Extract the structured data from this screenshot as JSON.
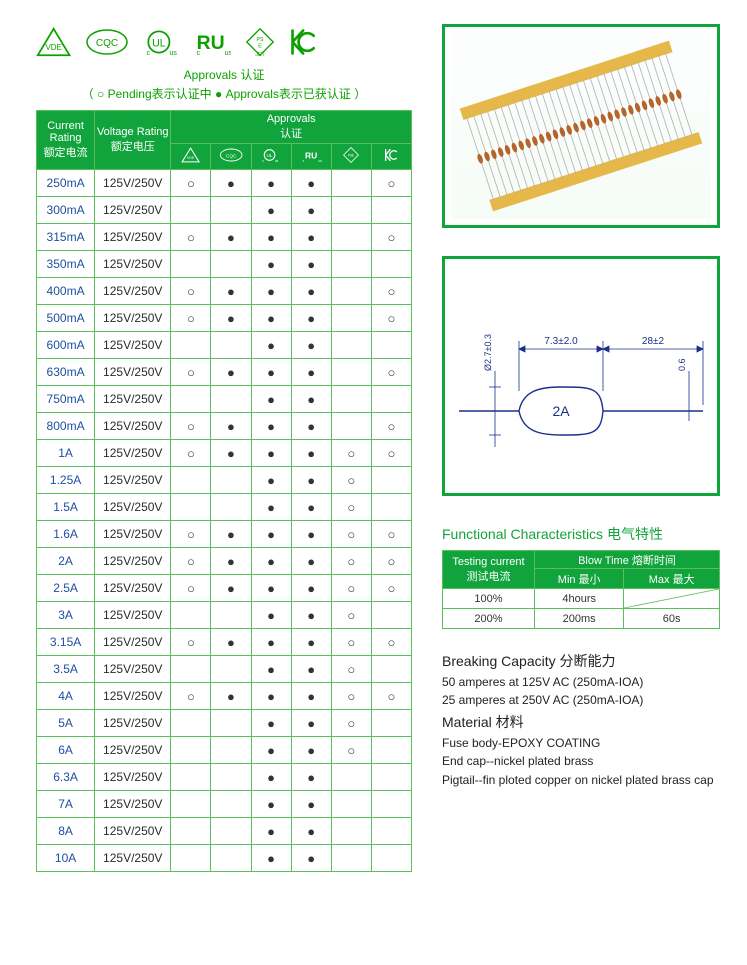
{
  "colors": {
    "brand": "#12a43c",
    "border": "#5bbf5b",
    "link": "#1e4fa0",
    "text": "#222"
  },
  "approvals_caption": "Approvals  认证",
  "legend": "（ ○ Pending表示认证中 ● Approvals表示已获认证 ）",
  "table_headers": {
    "current": "Current Rating\n额定电流",
    "voltage": "Voltage Rating\n额定电压",
    "approvals": "Approvals\n认证"
  },
  "cert_columns": [
    "VDE",
    "CQC",
    "cULus",
    "cRUus",
    "PSE/JET",
    "KC"
  ],
  "mark_legend": {
    "pending": "○",
    "approved": "●",
    "none": ""
  },
  "rows": [
    {
      "current": "250mA",
      "voltage": "125V/250V",
      "marks": [
        "○",
        "●",
        "●",
        "●",
        "",
        "○"
      ]
    },
    {
      "current": "300mA",
      "voltage": "125V/250V",
      "marks": [
        "",
        "",
        "●",
        "●",
        "",
        ""
      ]
    },
    {
      "current": "315mA",
      "voltage": "125V/250V",
      "marks": [
        "○",
        "●",
        "●",
        "●",
        "",
        "○"
      ]
    },
    {
      "current": "350mA",
      "voltage": "125V/250V",
      "marks": [
        "",
        "",
        "●",
        "●",
        "",
        ""
      ]
    },
    {
      "current": "400mA",
      "voltage": "125V/250V",
      "marks": [
        "○",
        "●",
        "●",
        "●",
        "",
        "○"
      ]
    },
    {
      "current": "500mA",
      "voltage": "125V/250V",
      "marks": [
        "○",
        "●",
        "●",
        "●",
        "",
        "○"
      ]
    },
    {
      "current": "600mA",
      "voltage": "125V/250V",
      "marks": [
        "",
        "",
        "●",
        "●",
        "",
        ""
      ]
    },
    {
      "current": "630mA",
      "voltage": "125V/250V",
      "marks": [
        "○",
        "●",
        "●",
        "●",
        "",
        "○"
      ]
    },
    {
      "current": "750mA",
      "voltage": "125V/250V",
      "marks": [
        "",
        "",
        "●",
        "●",
        "",
        ""
      ]
    },
    {
      "current": "800mA",
      "voltage": "125V/250V",
      "marks": [
        "○",
        "●",
        "●",
        "●",
        "",
        "○"
      ]
    },
    {
      "current": "1A",
      "voltage": "125V/250V",
      "marks": [
        "○",
        "●",
        "●",
        "●",
        "○",
        "○"
      ]
    },
    {
      "current": "1.25A",
      "voltage": "125V/250V",
      "marks": [
        "",
        "",
        "●",
        "●",
        "○",
        ""
      ]
    },
    {
      "current": "1.5A",
      "voltage": "125V/250V",
      "marks": [
        "",
        "",
        "●",
        "●",
        "○",
        ""
      ]
    },
    {
      "current": "1.6A",
      "voltage": "125V/250V",
      "marks": [
        "○",
        "●",
        "●",
        "●",
        "○",
        "○"
      ]
    },
    {
      "current": "2A",
      "voltage": "125V/250V",
      "marks": [
        "○",
        "●",
        "●",
        "●",
        "○",
        "○"
      ]
    },
    {
      "current": "2.5A",
      "voltage": "125V/250V",
      "marks": [
        "○",
        "●",
        "●",
        "●",
        "○",
        "○"
      ]
    },
    {
      "current": "3A",
      "voltage": "125V/250V",
      "marks": [
        "",
        "",
        "●",
        "●",
        "○",
        ""
      ]
    },
    {
      "current": "3.15A",
      "voltage": "125V/250V",
      "marks": [
        "○",
        "●",
        "●",
        "●",
        "○",
        "○"
      ]
    },
    {
      "current": "3.5A",
      "voltage": "125V/250V",
      "marks": [
        "",
        "",
        "●",
        "●",
        "○",
        ""
      ]
    },
    {
      "current": "4A",
      "voltage": "125V/250V",
      "marks": [
        "○",
        "●",
        "●",
        "●",
        "○",
        "○"
      ]
    },
    {
      "current": "5A",
      "voltage": "125V/250V",
      "marks": [
        "",
        "",
        "●",
        "●",
        "○",
        ""
      ]
    },
    {
      "current": "6A",
      "voltage": "125V/250V",
      "marks": [
        "",
        "",
        "●",
        "●",
        "○",
        ""
      ]
    },
    {
      "current": "6.3A",
      "voltage": "125V/250V",
      "marks": [
        "",
        "",
        "●",
        "●",
        "",
        ""
      ]
    },
    {
      "current": "7A",
      "voltage": "125V/250V",
      "marks": [
        "",
        "",
        "●",
        "●",
        "",
        ""
      ]
    },
    {
      "current": "8A",
      "voltage": "125V/250V",
      "marks": [
        "",
        "",
        "●",
        "●",
        "",
        ""
      ]
    },
    {
      "current": "10A",
      "voltage": "125V/250V",
      "marks": [
        "",
        "",
        "●",
        "●",
        "",
        ""
      ]
    }
  ],
  "drawing_dims": {
    "body_len": "7.3±2.0",
    "lead_len": "28±2",
    "body_dia": "Ø2.7±0.3",
    "lead_dia": "0.6",
    "marking": "2A"
  },
  "func_title": "Functional  Characteristics  电气特性",
  "blow_headers": {
    "testing": "Testing current\n测试电流",
    "blow": "Blow Time 熔断时间",
    "min": "Min 最小",
    "max": "Max 最大"
  },
  "blow_rows": [
    {
      "pct": "100%",
      "min": "4hours",
      "max": ""
    },
    {
      "pct": "200%",
      "min": "200ms",
      "max": "60s"
    }
  ],
  "spec": {
    "breaking_hdr": "Breaking  Capacity 分断能力",
    "breaking1": "50 amperes at 125V AC (250mA-IOA)",
    "breaking2": "25 amperes at 250V AC (250mA-IOA)",
    "material_hdr": "Material  材料",
    "material1": "Fuse body-EPOXY COATING",
    "material2": "End cap--nickel plated brass",
    "material3": "Pigtail--fin ploted copper on nickel plated brass cap"
  }
}
